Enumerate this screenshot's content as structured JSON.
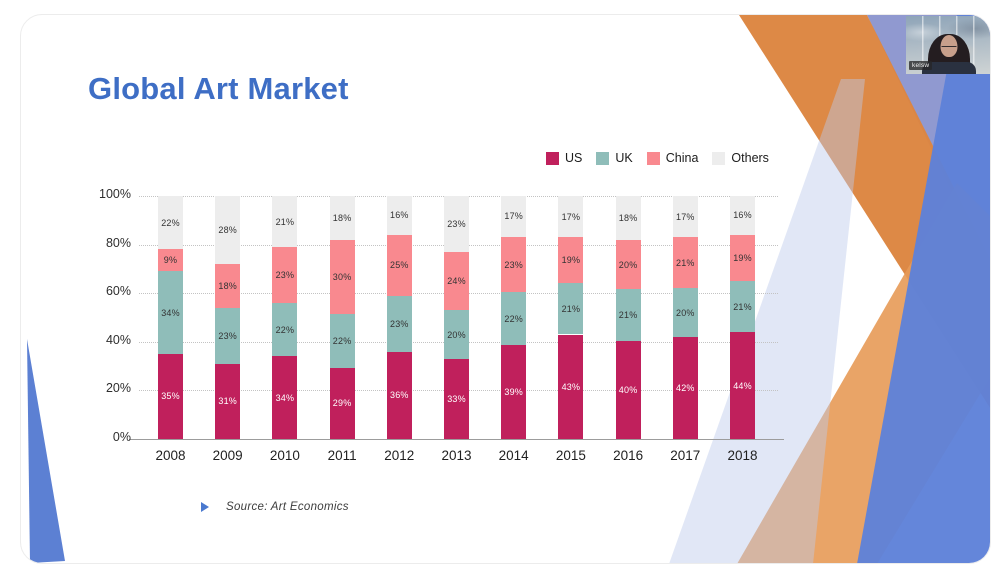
{
  "slide": {
    "title": "Global Art Market",
    "title_color": "#3E6EC5",
    "source_label": "Source: Art Economics"
  },
  "webcam": {
    "participant_name": "kelsw"
  },
  "chart_data": {
    "type": "bar",
    "stacked": true,
    "categories": [
      "2008",
      "2009",
      "2010",
      "2011",
      "2012",
      "2013",
      "2014",
      "2015",
      "2016",
      "2017",
      "2018"
    ],
    "series": [
      {
        "name": "US",
        "color": "#C0205C",
        "label_color": "#FFFFFF",
        "values": [
          35,
          31,
          34,
          29,
          36,
          33,
          39,
          43,
          40,
          42,
          44
        ]
      },
      {
        "name": "UK",
        "color": "#8FBDB9",
        "label_color": "#333333",
        "values": [
          34,
          23,
          22,
          22,
          23,
          20,
          22,
          21,
          21,
          20,
          21
        ]
      },
      {
        "name": "China",
        "color": "#F9898F",
        "label_color": "#333333",
        "values": [
          9,
          18,
          23,
          30,
          25,
          24,
          23,
          19,
          20,
          21,
          19
        ]
      },
      {
        "name": "Others",
        "color": "#EDEDED",
        "label_color": "#333333",
        "values": [
          22,
          28,
          21,
          18,
          16,
          23,
          17,
          17,
          18,
          17,
          16
        ]
      }
    ],
    "value_suffix": "%",
    "y_ticks": [
      "0%",
      "20%",
      "40%",
      "60%",
      "80%",
      "100%"
    ],
    "ylim": [
      0,
      100
    ],
    "grid": "dotted-horizontal",
    "legend_position": "top-right",
    "bar_label_format": "percent"
  }
}
